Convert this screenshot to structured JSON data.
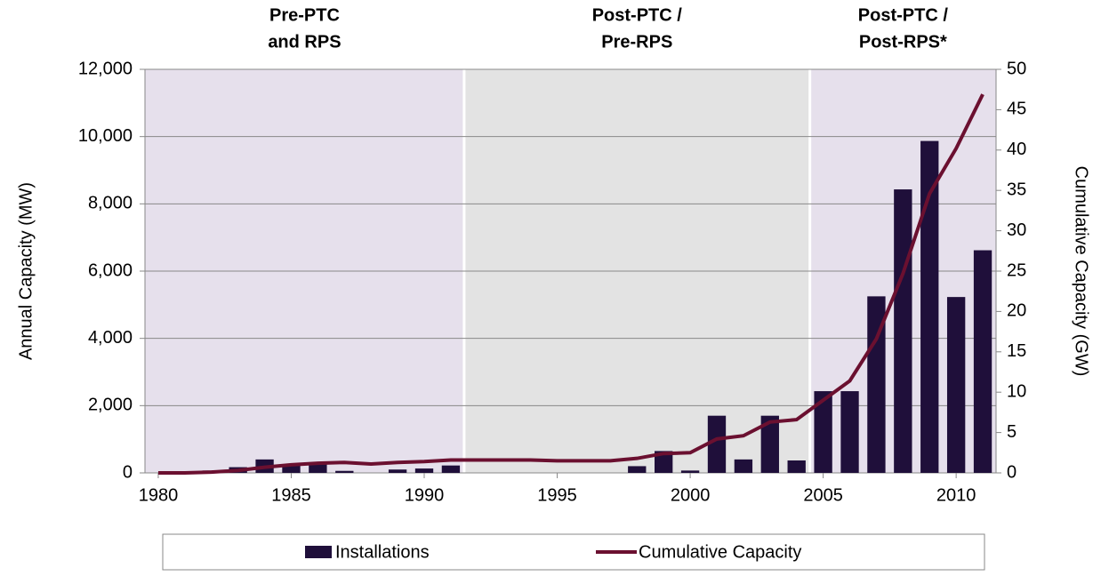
{
  "chart_data": {
    "type": "bar-line",
    "periods": [
      {
        "label": [
          "Pre-PTC",
          "and RPS"
        ],
        "start": 1979.5,
        "end": 1991.5,
        "color": "#e6e0ec"
      },
      {
        "label": [
          "Post-PTC /",
          "Pre-RPS"
        ],
        "start": 1991.5,
        "end": 2004.5,
        "color": "#e3e3e3"
      },
      {
        "label": [
          "Post-PTC /",
          "Post-RPS*"
        ],
        "start": 2004.5,
        "end": 2011.5,
        "color": "#e6e0ec"
      }
    ],
    "y_label": "Annual Capacity (MW)",
    "y2_label": "Cumulative Capacity (GW)",
    "x": [
      1980,
      1981,
      1982,
      1983,
      1984,
      1985,
      1986,
      1987,
      1988,
      1989,
      1990,
      1991,
      1992,
      1993,
      1994,
      1995,
      1996,
      1997,
      1998,
      1999,
      2000,
      2001,
      2002,
      2003,
      2004,
      2005,
      2006,
      2007,
      2008,
      2009,
      2010,
      2011
    ],
    "xlim": [
      1979.5,
      2011.5
    ],
    "xticks": [
      1980,
      1985,
      1990,
      1995,
      2000,
      2005,
      2010
    ],
    "ylim": [
      0,
      12000
    ],
    "yticks": [
      0,
      {
        "value": 2000,
        "label": "2,000"
      },
      {
        "value": 4000,
        "label": "4,000"
      },
      {
        "value": 6000,
        "label": "6,000"
      },
      {
        "value": 8000,
        "label": "8,000"
      },
      {
        "value": 10000,
        "label": "10,000"
      },
      {
        "value": 12000,
        "label": "12,000"
      }
    ],
    "y2lim": [
      0,
      50
    ],
    "y2ticks": [
      0,
      5,
      10,
      15,
      20,
      25,
      30,
      35,
      40,
      45,
      50
    ],
    "grid": true,
    "series": [
      {
        "name": "Installations",
        "type": "bar",
        "color": "#1f0f3a",
        "values": [
          0,
          10,
          70,
          170,
          400,
          250,
          250,
          60,
          0,
          100,
          130,
          220,
          0,
          0,
          0,
          0,
          0,
          0,
          200,
          650,
          70,
          1700,
          400,
          1700,
          370,
          2430,
          2430,
          5250,
          8430,
          9870,
          5230,
          6620
        ]
      },
      {
        "name": "Cumulative Capacity",
        "type": "line",
        "axis": "y2",
        "color": "#6b1030",
        "values": [
          0,
          0,
          0.1,
          0.3,
          0.7,
          1.0,
          1.2,
          1.3,
          1.1,
          1.3,
          1.4,
          1.6,
          1.6,
          1.6,
          1.6,
          1.5,
          1.5,
          1.5,
          1.8,
          2.4,
          2.5,
          4.2,
          4.6,
          6.3,
          6.6,
          9.0,
          11.4,
          16.6,
          24.7,
          34.6,
          40.2,
          46.9
        ]
      }
    ]
  }
}
